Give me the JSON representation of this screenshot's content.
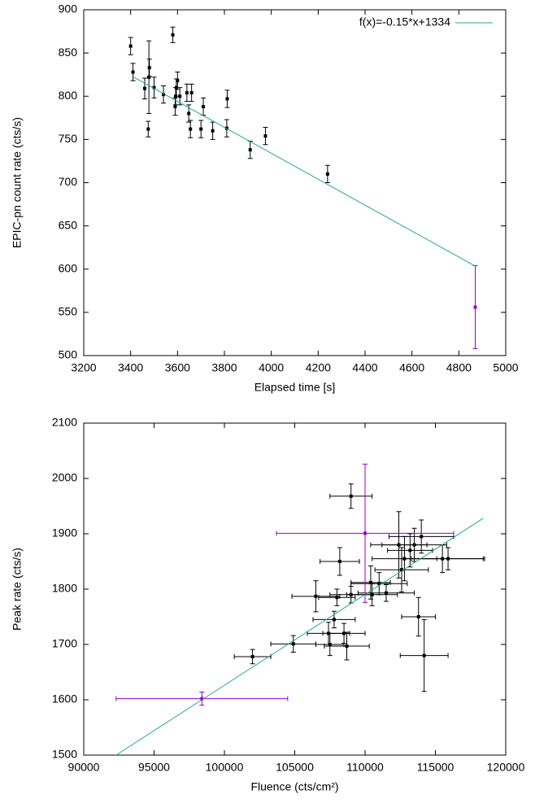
{
  "chart_data": [
    {
      "type": "scatter",
      "xlabel": "Elapsed time [s]",
      "ylabel": "EPIC-pn count rate (cts/s)",
      "xlim": [
        3200,
        5000
      ],
      "xticks": [
        3200,
        3400,
        3600,
        3800,
        4000,
        4200,
        4400,
        4600,
        4800,
        5000
      ],
      "ylim": [
        500,
        900
      ],
      "yticks": [
        500,
        550,
        600,
        650,
        700,
        750,
        800,
        850,
        900
      ],
      "legend": "top-right",
      "series": [
        {
          "color": "#000000",
          "x": [
            3400,
            3410,
            3460,
            3475,
            3478,
            3480,
            3500,
            3540,
            3580,
            3590,
            3592,
            3595,
            3600,
            3610,
            3640,
            3648,
            3655,
            3660,
            3700,
            3710,
            3750,
            3810,
            3812,
            3910,
            3975,
            4240
          ],
          "values": [
            858,
            828,
            809,
            762,
            822,
            833,
            810,
            802,
            871,
            788,
            800,
            810,
            818,
            800,
            804,
            780,
            762,
            804,
            762,
            788,
            760,
            763,
            797,
            738,
            754,
            710
          ],
          "yerr": [
            10,
            10,
            12,
            9,
            42,
            10,
            12,
            10,
            9,
            10,
            10,
            10,
            10,
            10,
            10,
            10,
            10,
            10,
            10,
            10,
            10,
            10,
            10,
            10,
            10,
            10
          ]
        },
        {
          "color": "#9400d3",
          "x": [
            4870
          ],
          "values": [
            556
          ],
          "yerr": [
            48
          ]
        },
        {
          "name": "f(x)=-0.15*x+1334",
          "type": "line",
          "color": "#21a88a",
          "x": [
            3410,
            4870
          ],
          "values": [
            822.5,
            603.5
          ]
        }
      ]
    },
    {
      "type": "scatter",
      "xlabel": "Fluence (cts/cm²)",
      "ylabel": "Peak rate (cts/s)",
      "xlim": [
        90000,
        120000
      ],
      "xticks": [
        90000,
        95000,
        100000,
        105000,
        110000,
        115000,
        120000
      ],
      "ylim": [
        1500,
        2100
      ],
      "yticks": [
        1500,
        1600,
        1700,
        1800,
        1900,
        2000,
        2100
      ],
      "series": [
        {
          "color": "#000000",
          "x": [
            102000,
            104900,
            106500,
            107400,
            107500,
            107800,
            108000,
            108200,
            108500,
            108700,
            109000,
            109000,
            110400,
            110500,
            111000,
            111500,
            112400,
            112800,
            112600,
            113500,
            113800,
            114000,
            114200,
            115500,
            115900,
            113200
          ],
          "values": [
            1678,
            1701,
            1787,
            1720,
            1700,
            1745,
            1785,
            1850,
            1720,
            1697,
            1790,
            1968,
            1812,
            1790,
            1810,
            1793,
            1880,
            1855,
            1835,
            1880,
            1750,
            1895,
            1680,
            1855,
            1855,
            1870
          ],
          "xerr": [
            1300,
            1600,
            1700,
            1500,
            1000,
            1500,
            1300,
            1400,
            1500,
            1600,
            1500,
            1500,
            1400,
            1800,
            2000,
            2000,
            2000,
            2300,
            1900,
            2300,
            1200,
            2300,
            1700,
            2900,
            2600,
            1600
          ],
          "yerr": [
            13,
            15,
            28,
            20,
            20,
            15,
            15,
            25,
            18,
            25,
            15,
            22,
            30,
            20,
            20,
            15,
            60,
            40,
            40,
            30,
            35,
            30,
            65,
            25,
            20,
            30
          ]
        },
        {
          "color": "#9400d3",
          "x": [
            98400,
            110000
          ],
          "values": [
            1602,
            1901
          ],
          "xerr": [
            6100,
            6300
          ],
          "yerr": [
            12,
            125
          ]
        },
        {
          "type": "line",
          "color": "#21a88a",
          "x": [
            92300,
            118400
          ],
          "values": [
            1500,
            1928
          ]
        }
      ]
    }
  ]
}
